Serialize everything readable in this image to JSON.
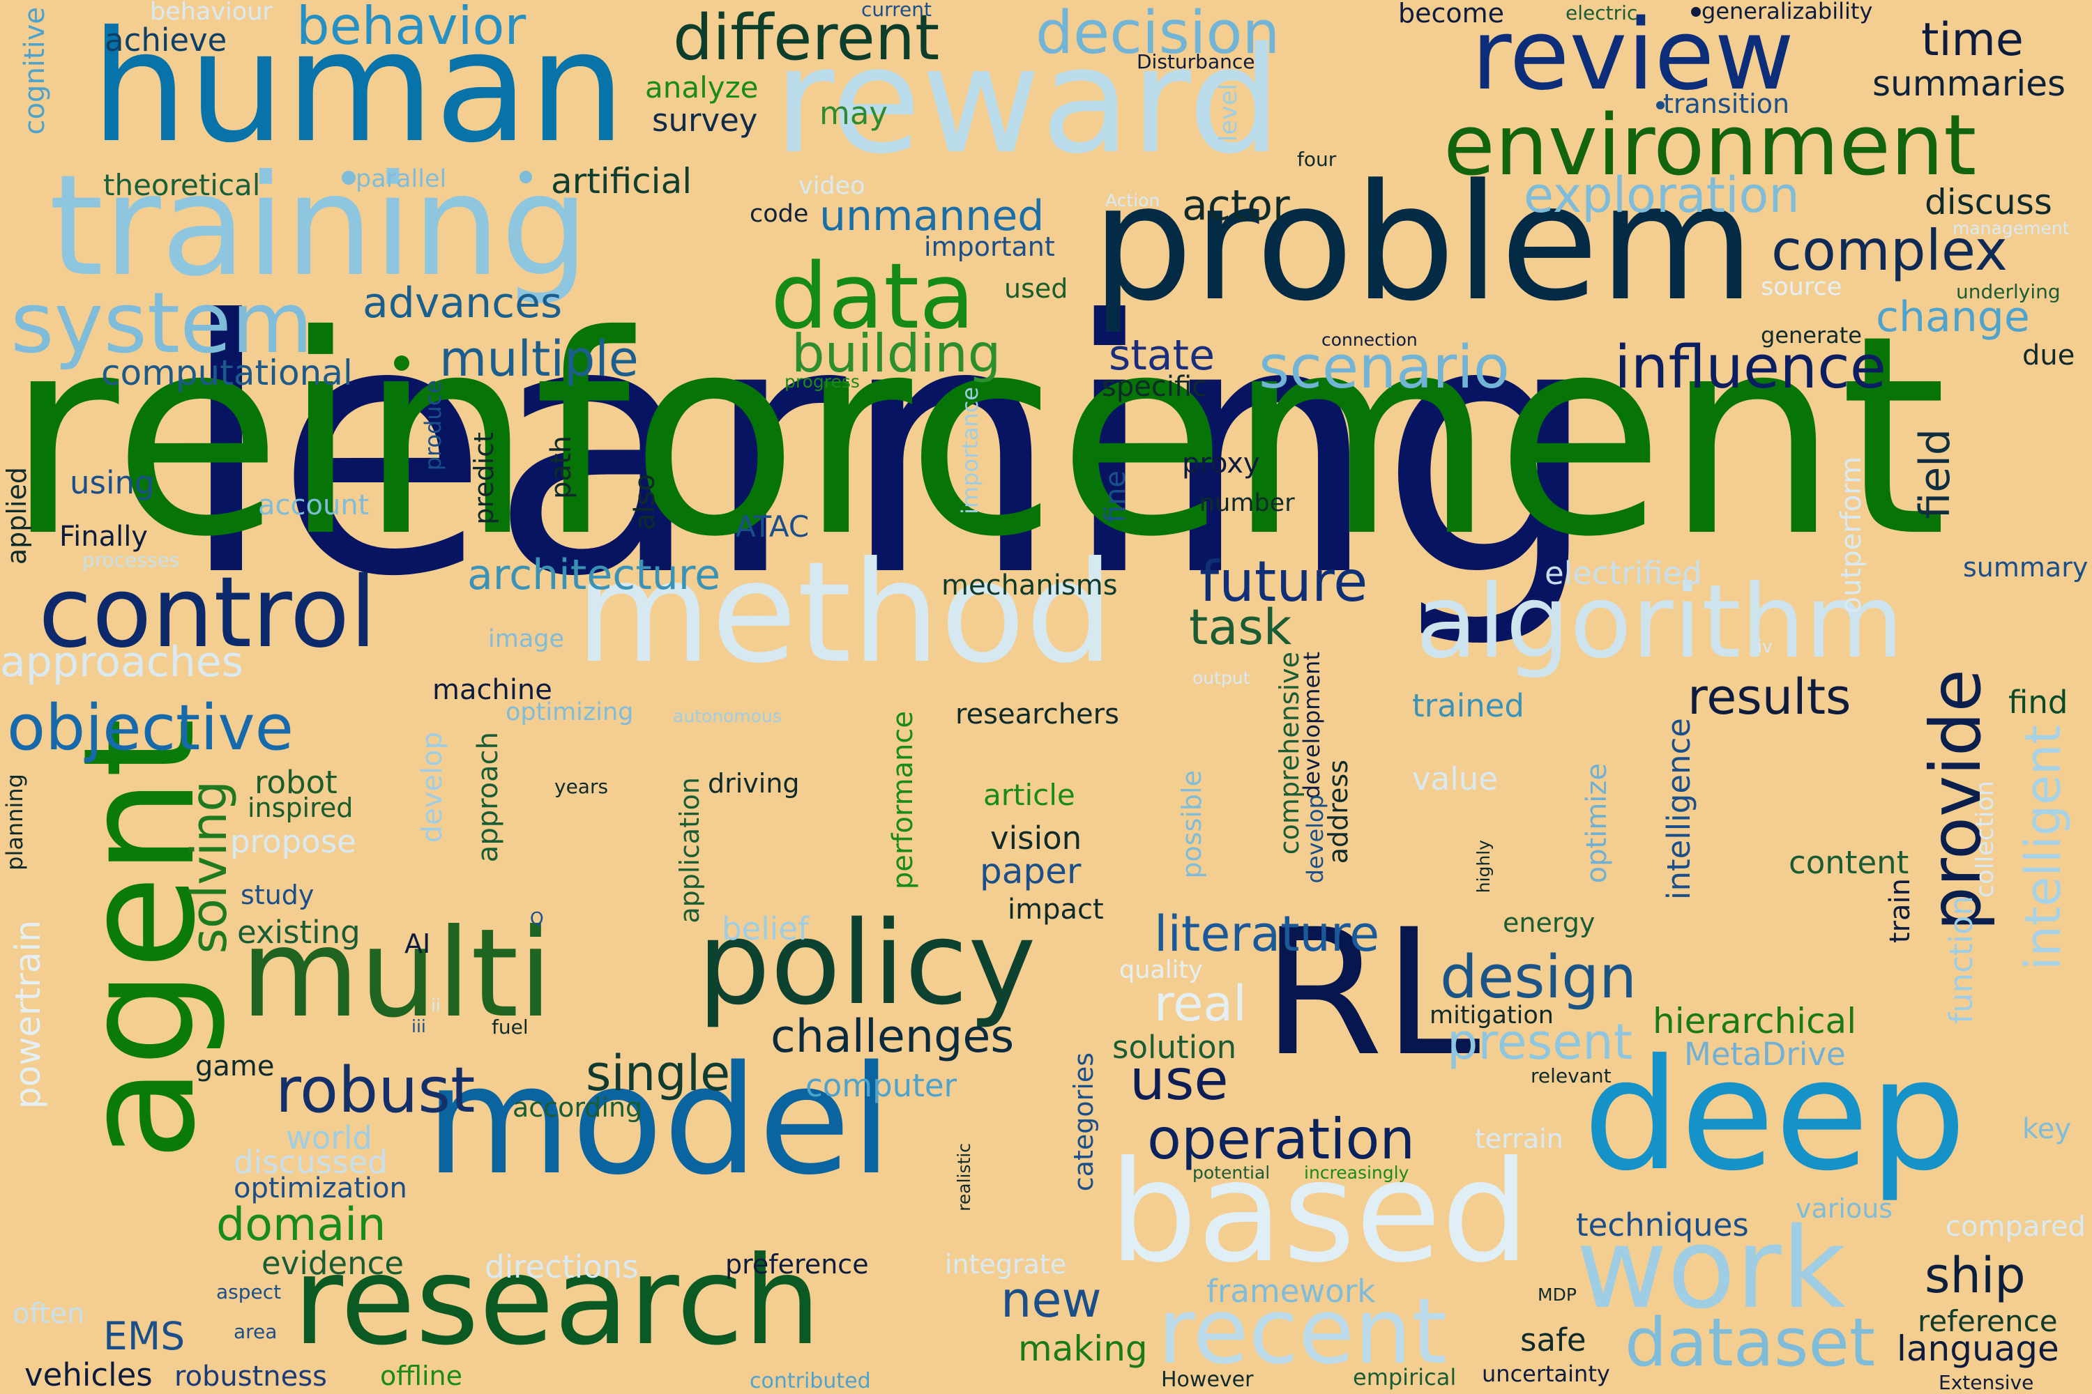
{
  "background_color": "#F4CE91",
  "words": [
    {
      "text": "learning",
      "color": "#061461"
    },
    {
      "text": "reinforcement",
      "color": "#077407"
    },
    {
      "text": "problem",
      "color": "#032B46"
    },
    {
      "text": "human",
      "color": "#0873A8"
    },
    {
      "text": "reward",
      "color": "#BADCEB"
    },
    {
      "text": "training",
      "color": "#8EC6E0"
    },
    {
      "text": "method",
      "color": "#D6E9F1"
    },
    {
      "text": "model",
      "color": "#0A64A0"
    },
    {
      "text": "agent",
      "color": "#0A7A0A"
    },
    {
      "text": "RL",
      "color": "#06164F"
    },
    {
      "text": "deep",
      "color": "#1593C8"
    },
    {
      "text": "based",
      "color": "#E0EEF5"
    },
    {
      "text": "research",
      "color": "#0B5A23"
    },
    {
      "text": "multi",
      "color": "#1F6420"
    },
    {
      "text": "policy",
      "color": "#0E4230"
    },
    {
      "text": "control",
      "color": "#0C2A6B"
    },
    {
      "text": "algorithm",
      "color": "#CDE4EE"
    },
    {
      "text": "review",
      "color": "#0C2E7A"
    },
    {
      "text": "environment",
      "color": "#13640F"
    },
    {
      "text": "system",
      "color": "#7FBCD9"
    },
    {
      "text": "data",
      "color": "#168A16"
    },
    {
      "text": "work",
      "color": "#9FCDE4"
    },
    {
      "text": "recent",
      "color": "#BCDCEB"
    },
    {
      "text": "provide",
      "color": "#0A1F4D"
    },
    {
      "text": "different",
      "color": "#0D3E2C"
    },
    {
      "text": "decision",
      "color": "#72B4D6"
    },
    {
      "text": "behavior",
      "color": "#2790C2"
    },
    {
      "text": "objective",
      "color": "#1669AA"
    },
    {
      "text": "future",
      "color": "#0F2F76"
    },
    {
      "text": "complex",
      "color": "#0F2A54"
    },
    {
      "text": "influence",
      "color": "#0C1E62"
    },
    {
      "text": "scenario",
      "color": "#72B4D6"
    },
    {
      "text": "exploration",
      "color": "#7FBCD9"
    },
    {
      "text": "operation",
      "color": "#0A235E"
    },
    {
      "text": "building",
      "color": "#2D8E2D"
    },
    {
      "text": "multiple",
      "color": "#1C5F8E"
    },
    {
      "text": "design",
      "color": "#1B5588"
    },
    {
      "text": "literature",
      "color": "#1B5A9A"
    },
    {
      "text": "dataset",
      "color": "#7FBCD9"
    },
    {
      "text": "robust",
      "color": "#13306B"
    },
    {
      "text": "challenges",
      "color": "#0A2A3E"
    },
    {
      "text": "single",
      "color": "#0F3B30"
    },
    {
      "text": "results",
      "color": "#0D1C3E"
    },
    {
      "text": "intelligent",
      "color": "#A6D2E8"
    },
    {
      "text": "solving",
      "color": "#1F7A1F"
    },
    {
      "text": "domain",
      "color": "#198A1C"
    },
    {
      "text": "architecture",
      "color": "#3A93B6"
    },
    {
      "text": "unmanned",
      "color": "#1B6FA6"
    },
    {
      "text": "actor",
      "color": "#0F2A2A"
    },
    {
      "text": "state",
      "color": "#1A2E7E"
    },
    {
      "text": "new",
      "color": "#1A4F8A"
    },
    {
      "text": "use",
      "color": "#0D1E56"
    },
    {
      "text": "ship",
      "color": "#0A1F3E"
    },
    {
      "text": "real",
      "color": "#E5F0F5"
    },
    {
      "text": "task",
      "color": "#1A5C33"
    },
    {
      "text": "present",
      "color": "#8EC6E0"
    },
    {
      "text": "change",
      "color": "#4DA3CC"
    },
    {
      "text": "field",
      "color": "#0F2E3F"
    },
    {
      "text": "time",
      "color": "#0D1C3E"
    },
    {
      "text": "summaries",
      "color": "#0D2238"
    },
    {
      "text": "discuss",
      "color": "#0F2A2A"
    },
    {
      "text": "advances",
      "color": "#1A608F"
    },
    {
      "text": "approaches",
      "color": "#D9EAF3"
    },
    {
      "text": "computational",
      "color": "#1D5A8A"
    },
    {
      "text": "theoretical",
      "color": "#1A5E3A"
    },
    {
      "text": "artificial",
      "color": "#0F3E2E"
    },
    {
      "text": "achieve",
      "color": "#0E3F67"
    },
    {
      "text": "survey",
      "color": "#0F2B4A"
    },
    {
      "text": "analyze",
      "color": "#1A8A1A"
    },
    {
      "text": "may",
      "color": "#2E8A2E"
    },
    {
      "text": "code",
      "color": "#0F2238"
    },
    {
      "text": "important",
      "color": "#1A4F8A"
    },
    {
      "text": "used",
      "color": "#1A5C2A"
    },
    {
      "text": "specific",
      "color": "#0F2A2A"
    },
    {
      "text": "proxy",
      "color": "#0D1C3E"
    },
    {
      "text": "number",
      "color": "#0F2A2A"
    },
    {
      "text": "mechanisms",
      "color": "#0F3B2A"
    },
    {
      "text": "machine",
      "color": "#0D1C3E"
    },
    {
      "text": "researchers",
      "color": "#0F2A2A"
    },
    {
      "text": "trained",
      "color": "#3A93B6"
    },
    {
      "text": "find",
      "color": "#0A4A2A"
    },
    {
      "text": "summary",
      "color": "#1A4F8A"
    },
    {
      "text": "due",
      "color": "#0F2A2A"
    },
    {
      "text": "generate",
      "color": "#0F2A2A"
    },
    {
      "text": "content",
      "color": "#1A5C33"
    },
    {
      "text": "energy",
      "color": "#1A5C33"
    },
    {
      "text": "mitigation",
      "color": "#0F2A2A"
    },
    {
      "text": "hierarchical",
      "color": "#1A7A1A"
    },
    {
      "text": "MetaDrive",
      "color": "#6FB0D4"
    },
    {
      "text": "techniques",
      "color": "#1A4F8A"
    },
    {
      "text": "various",
      "color": "#7FBCD9"
    },
    {
      "text": "compared",
      "color": "#D9EAF3"
    },
    {
      "text": "reference",
      "color": "#0F3B2A"
    },
    {
      "text": "language",
      "color": "#0D1C3E"
    },
    {
      "text": "key",
      "color": "#7FBCD9"
    },
    {
      "text": "article",
      "color": "#1A8A1A"
    },
    {
      "text": "vision",
      "color": "#0F2A2A"
    },
    {
      "text": "paper",
      "color": "#1A4F8A"
    },
    {
      "text": "impact",
      "color": "#0F2A2A"
    },
    {
      "text": "solution",
      "color": "#1A5C33"
    },
    {
      "text": "framework",
      "color": "#7FBCD9"
    },
    {
      "text": "making",
      "color": "#1A7A1A"
    },
    {
      "text": "preference",
      "color": "#0D1C3E"
    },
    {
      "text": "integrate",
      "color": "#D9EAF3"
    },
    {
      "text": "directions",
      "color": "#D9EAF3"
    },
    {
      "text": "evidence",
      "color": "#1A5C33"
    },
    {
      "text": "optimization",
      "color": "#1A4F8A"
    },
    {
      "text": "discussed",
      "color": "#C8E0EC"
    },
    {
      "text": "world",
      "color": "#9FCDE4"
    },
    {
      "text": "according",
      "color": "#1A5C33"
    },
    {
      "text": "computer",
      "color": "#4DA3CC"
    },
    {
      "text": "game",
      "color": "#0F2A2A"
    },
    {
      "text": "EMS",
      "color": "#1A4F8A"
    },
    {
      "text": "vehicles",
      "color": "#0D1C3E"
    },
    {
      "text": "robustness",
      "color": "#1A3A7A"
    },
    {
      "text": "offline",
      "color": "#1A8A1A"
    },
    {
      "text": "often",
      "color": "#C8E0EC"
    },
    {
      "text": "aspect",
      "color": "#1A4F8A"
    },
    {
      "text": "area",
      "color": "#1A4F8A"
    },
    {
      "text": "contributed",
      "color": "#4DA3CC"
    },
    {
      "text": "However",
      "color": "#0F2A2A"
    },
    {
      "text": "empirical",
      "color": "#1A5C33"
    },
    {
      "text": "uncertainty",
      "color": "#0D1C3E"
    },
    {
      "text": "safe",
      "color": "#0F2A2A"
    },
    {
      "text": "Extensive",
      "color": "#0D1C3E"
    },
    {
      "text": "MDP",
      "color": "#0F2A2A"
    },
    {
      "text": "existing",
      "color": "#1A5C33"
    },
    {
      "text": "study",
      "color": "#1A4F8A"
    },
    {
      "text": "propose",
      "color": "#D9EAF3"
    },
    {
      "text": "inspired",
      "color": "#1A5C2A"
    },
    {
      "text": "robot",
      "color": "#1A5C2A"
    },
    {
      "text": "AI",
      "color": "#0D1C3E"
    },
    {
      "text": "Finally",
      "color": "#0D1C3E"
    },
    {
      "text": "processes",
      "color": "#C8E0EC"
    },
    {
      "text": "using",
      "color": "#1A4F8A"
    },
    {
      "text": "account",
      "color": "#7FBCD9"
    },
    {
      "text": "ATAC",
      "color": "#1A4F8A"
    },
    {
      "text": "image",
      "color": "#7FBCD9"
    },
    {
      "text": "optimizing",
      "color": "#7FBCD9"
    },
    {
      "text": "autonomous",
      "color": "#9FCDE4"
    },
    {
      "text": "years",
      "color": "#0F2A2A"
    },
    {
      "text": "driving",
      "color": "#0F2A2A"
    },
    {
      "text": "belief",
      "color": "#9FCDE4"
    },
    {
      "text": "quality",
      "color": "#E5F0F5"
    },
    {
      "text": "fuel",
      "color": "#0F2A2A"
    },
    {
      "text": "relevant",
      "color": "#0F2A2A"
    },
    {
      "text": "potential",
      "color": "#1A5C33"
    },
    {
      "text": "increasingly",
      "color": "#1A8A1A"
    },
    {
      "text": "terrain",
      "color": "#D9EAF3"
    },
    {
      "text": "become",
      "color": "#0D1C3E"
    },
    {
      "text": "electric",
      "color": "#1A5C33"
    },
    {
      "text": "generalizability",
      "color": "#0D1C3E"
    },
    {
      "text": "current",
      "color": "#1A4F8A"
    },
    {
      "text": "behaviour",
      "color": "#D9EAF3"
    },
    {
      "text": "Disturbance",
      "color": "#0D1C3E"
    },
    {
      "text": "transition",
      "color": "#1A4F8A"
    },
    {
      "text": "four",
      "color": "#0F2A2A"
    },
    {
      "text": "parallel",
      "color": "#7FBCD9"
    },
    {
      "text": "video",
      "color": "#D9EAF3"
    },
    {
      "text": "Action",
      "color": "#D9EAF3"
    },
    {
      "text": "source",
      "color": "#E5F0F5"
    },
    {
      "text": "management",
      "color": "#D9EAF3"
    },
    {
      "text": "underlying",
      "color": "#1A5C33"
    },
    {
      "text": "connection",
      "color": "#0D1C3E"
    },
    {
      "text": "progress",
      "color": "#1A8A1A"
    },
    {
      "text": "electrified",
      "color": "#C8E0EC"
    },
    {
      "text": "value",
      "color": "#D9EAF3"
    },
    {
      "text": "output",
      "color": "#D9EAF3"
    },
    {
      "text": "iv",
      "color": "#D9EAF3"
    },
    {
      "text": "Q",
      "color": "#1A4F8A"
    },
    {
      "text": "ii",
      "color": "#D9EAF3"
    },
    {
      "text": "iii",
      "color": "#1A4F8A"
    },
    {
      "text": "cognitive",
      "color": "#4DA3CC"
    },
    {
      "text": "applied",
      "color": "#0F2A2A"
    },
    {
      "text": "planning",
      "color": "#0F2A2A"
    },
    {
      "text": "powertrain",
      "color": "#E5F0F5"
    },
    {
      "text": "level",
      "color": "#9FCDE4"
    },
    {
      "text": "produce",
      "color": "#1A4F8A"
    },
    {
      "text": "predict",
      "color": "#0F2A2A"
    },
    {
      "text": "path",
      "color": "#0F2A2A"
    },
    {
      "text": "also",
      "color": "#0F2A2A"
    },
    {
      "text": "importance",
      "color": "#9FCDE4"
    },
    {
      "text": "fine",
      "color": "#1A4F8A"
    },
    {
      "text": "approach",
      "color": "#1A5C33"
    },
    {
      "text": "develop",
      "color": "#9FCDE4"
    },
    {
      "text": "application",
      "color": "#1A5C33"
    },
    {
      "text": "performance",
      "color": "#1A8A1A"
    },
    {
      "text": "comprehensive",
      "color": "#1A5C33"
    },
    {
      "text": "development",
      "color": "#0D1C3E"
    },
    {
      "text": "possible",
      "color": "#7FBCD9"
    },
    {
      "text": "address",
      "color": "#0F2A2A"
    },
    {
      "text": "develop2",
      "color": "#1A4F8A"
    },
    {
      "text": "optimize",
      "color": "#6FB0D4"
    },
    {
      "text": "intelligence",
      "color": "#1A4F8A"
    },
    {
      "text": "highly",
      "color": "#0F2A2A"
    },
    {
      "text": "realistic",
      "color": "#0F2A2A"
    },
    {
      "text": "categories",
      "color": "#1A4F8A"
    },
    {
      "text": "train",
      "color": "#0D1C3E"
    },
    {
      "text": "function",
      "color": "#9FCDE4"
    },
    {
      "text": "collection",
      "color": "#D9EAF3"
    },
    {
      "text": "outperform",
      "color": "#D9EAF3"
    }
  ]
}
